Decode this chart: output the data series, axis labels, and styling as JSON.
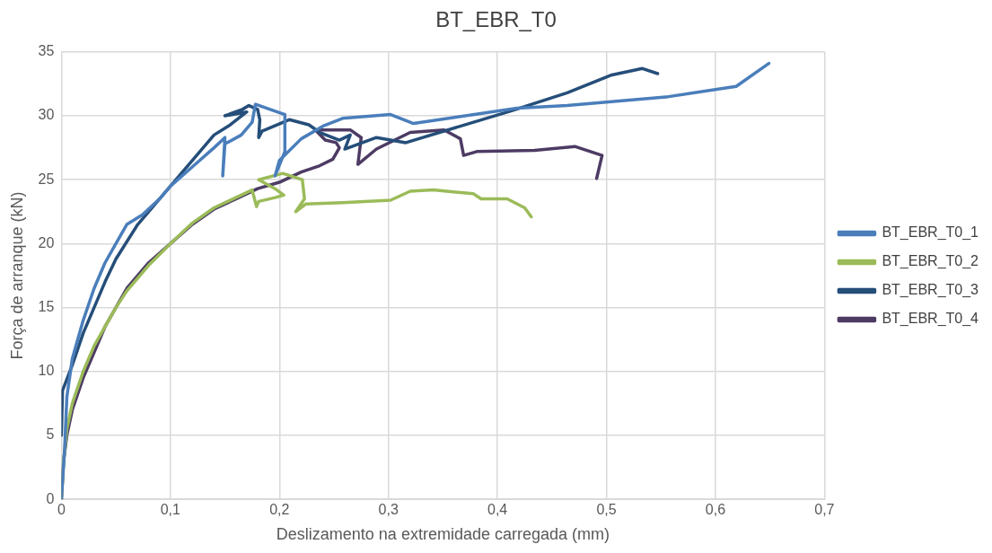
{
  "chart_data": {
    "type": "line",
    "title": "BT_EBR_T0",
    "xlabel": "Deslizamento na extremidade carregada (mm)",
    "ylabel": "Força de arranque (kN)",
    "xlim": [
      0,
      0.7
    ],
    "xticks": [
      {
        "value": 0,
        "label": "0"
      },
      {
        "value": 0.1,
        "label": "0,1"
      },
      {
        "value": 0.2,
        "label": "0,2"
      },
      {
        "value": 0.3,
        "label": "0,3"
      },
      {
        "value": 0.4,
        "label": "0,4"
      },
      {
        "value": 0.5,
        "label": "0,5"
      },
      {
        "value": 0.6,
        "label": "0,6"
      },
      {
        "value": 0.7,
        "label": "0,7"
      }
    ],
    "ylim": [
      0,
      35
    ],
    "yticks": [
      0,
      5,
      10,
      15,
      20,
      25,
      30,
      35
    ],
    "grid": true,
    "legend": "right",
    "marker": "none",
    "line_style": "solid",
    "series": [
      {
        "name": "BT_EBR_T0_1",
        "color": "#4a7ebb",
        "x": [
          0,
          0.003,
          0.005,
          0.01,
          0.02,
          0.03,
          0.04,
          0.05,
          0.06,
          0.075,
          0.09,
          0.1,
          0.12,
          0.14,
          0.15,
          0.148,
          0.15,
          0.165,
          0.175,
          0.178,
          0.205,
          0.205,
          0.196,
          0.2,
          0.22,
          0.24,
          0.258,
          0.302,
          0.323,
          0.418,
          0.464,
          0.557,
          0.619,
          0.649
        ],
        "values": [
          0,
          4,
          8,
          11,
          14,
          16.5,
          18.5,
          20,
          21.5,
          22.3,
          23.5,
          24.5,
          26,
          27.5,
          28.3,
          25.3,
          27.8,
          28.5,
          29.5,
          30.9,
          30.1,
          27.2,
          25.3,
          26.5,
          28.2,
          29.2,
          29.8,
          30.1,
          29.4,
          30.6,
          30.8,
          31.5,
          32.3,
          34.1
        ]
      },
      {
        "name": "BT_EBR_T0_2",
        "color": "#9bbb59",
        "x": [
          0,
          0.002,
          0.005,
          0.01,
          0.02,
          0.03,
          0.04,
          0.05,
          0.06,
          0.08,
          0.1,
          0.12,
          0.14,
          0.16,
          0.175,
          0.179,
          0.181,
          0.196,
          0.204,
          0.196,
          0.181,
          0.203,
          0.221,
          0.223,
          0.215,
          0.224,
          0.258,
          0.302,
          0.32,
          0.341,
          0.378,
          0.385,
          0.409,
          0.425,
          0.431
        ],
        "values": [
          0,
          3,
          5.5,
          7.5,
          10,
          12,
          13.5,
          15,
          16.3,
          18.3,
          20,
          21.6,
          22.8,
          23.6,
          24.2,
          22.9,
          23.3,
          23.6,
          23.8,
          24.3,
          25,
          25.5,
          25,
          23.5,
          22.5,
          23.1,
          23.2,
          23.4,
          24.1,
          24.2,
          23.9,
          23.5,
          23.5,
          22.8,
          22.1
        ]
      },
      {
        "name": "BT_EBR_T0_3",
        "color": "#254e79",
        "x": [
          0,
          0.001,
          0.01,
          0.02,
          0.03,
          0.04,
          0.05,
          0.07,
          0.09,
          0.1,
          0.12,
          0.14,
          0.155,
          0.17,
          0.15,
          0.166,
          0.172,
          0.18,
          0.182,
          0.181,
          0.184,
          0.209,
          0.227,
          0.237,
          0.255,
          0.265,
          0.26,
          0.289,
          0.316,
          0.413,
          0.464,
          0.505,
          0.533,
          0.547
        ],
        "values": [
          5,
          8.5,
          10.5,
          13,
          15,
          17,
          18.8,
          21.5,
          23.5,
          24.5,
          26.5,
          28.5,
          29.3,
          30.3,
          30,
          30.5,
          30.8,
          30.5,
          29.7,
          28.3,
          28.8,
          29.7,
          29.3,
          28.7,
          28.1,
          28.5,
          27.4,
          28.3,
          27.9,
          30.4,
          31.8,
          33.2,
          33.7,
          33.3
        ]
      },
      {
        "name": "BT_EBR_T0_4",
        "color": "#4d3b64",
        "x": [
          0,
          0.002,
          0.005,
          0.01,
          0.02,
          0.03,
          0.04,
          0.05,
          0.06,
          0.08,
          0.1,
          0.12,
          0.14,
          0.16,
          0.18,
          0.2,
          0.22,
          0.237,
          0.249,
          0.255,
          0.252,
          0.242,
          0.233,
          0.265,
          0.275,
          0.272,
          0.289,
          0.32,
          0.351,
          0.366,
          0.369,
          0.381,
          0.434,
          0.471,
          0.496,
          0.491
        ],
        "values": [
          0,
          3,
          5,
          7,
          9.5,
          11.5,
          13.5,
          15,
          16.5,
          18.5,
          20,
          21.5,
          22.7,
          23.5,
          24.3,
          24.8,
          25.6,
          26.1,
          26.6,
          27.5,
          27.9,
          28.1,
          28.9,
          28.9,
          28.3,
          26.2,
          27.4,
          28.7,
          28.9,
          28.2,
          26.9,
          27.2,
          27.3,
          27.6,
          26.9,
          25.1
        ]
      }
    ]
  }
}
